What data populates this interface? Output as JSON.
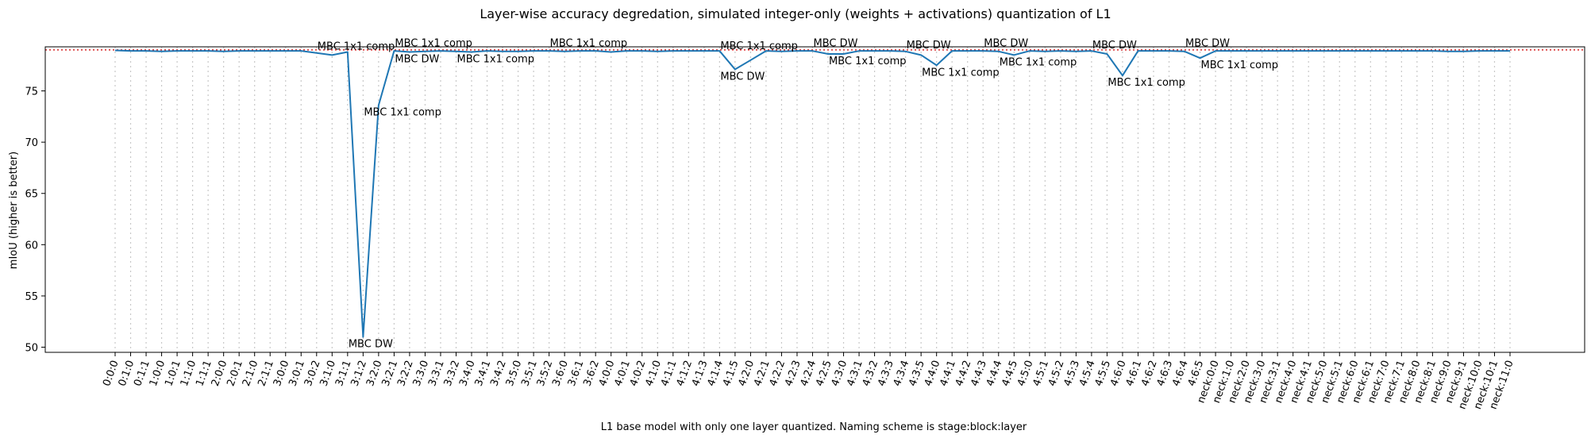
{
  "chart_data": {
    "type": "line",
    "title": "Layer-wise accuracy degredation, simulated integer-only (weights + activations) quantization of L1",
    "xlabel": "L1 base model with only one layer quantized. Naming scheme is stage:block:layer",
    "ylabel": "mIoU (higher is better)",
    "ylim": [
      49.5,
      79.3
    ],
    "yticks": [
      50,
      55,
      60,
      65,
      70,
      75
    ],
    "baseline": 79.0,
    "grid": "vertical dotted at each category",
    "colors": {
      "line": "#1f77b4",
      "baseline": "#d62728",
      "grid": "#c8c8c8"
    },
    "categories": [
      "0:0:0",
      "0:1:0",
      "0:1:1",
      "1:0:0",
      "1:0:1",
      "1:1:0",
      "1:1:1",
      "2:0:0",
      "2:0:1",
      "2:1:0",
      "2:1:1",
      "3:0:0",
      "3:0:1",
      "3:0:2",
      "3:1:0",
      "3:1:1",
      "3:1:2",
      "3:2:0",
      "3:2:1",
      "3:2:2",
      "3:3:0",
      "3:3:1",
      "3:3:2",
      "3:4:0",
      "3:4:1",
      "3:4:2",
      "3:5:0",
      "3:5:1",
      "3:5:2",
      "3:6:0",
      "3:6:1",
      "3:6:2",
      "4:0:0",
      "4:0:1",
      "4:0:2",
      "4:1:0",
      "4:1:1",
      "4:1:2",
      "4:1:3",
      "4:1:4",
      "4:1:5",
      "4:2:0",
      "4:2:1",
      "4:2:2",
      "4:2:3",
      "4:2:4",
      "4:2:5",
      "4:3:0",
      "4:3:1",
      "4:3:2",
      "4:3:3",
      "4:3:4",
      "4:3:5",
      "4:4:0",
      "4:4:1",
      "4:4:2",
      "4:4:3",
      "4:4:4",
      "4:4:5",
      "4:5:0",
      "4:5:1",
      "4:5:2",
      "4:5:3",
      "4:5:4",
      "4:5:5",
      "4:6:0",
      "4:6:1",
      "4:6:2",
      "4:6:3",
      "4:6:4",
      "4:6:5",
      "neck:0:0",
      "neck:1:0",
      "neck:2:0",
      "neck:3:0",
      "neck:3:1",
      "neck:4:0",
      "neck:4:1",
      "neck:5:0",
      "neck:5:1",
      "neck:6:0",
      "neck:6:1",
      "neck:7:0",
      "neck:7:1",
      "neck:8:0",
      "neck:8:1",
      "neck:9:0",
      "neck:9:1",
      "neck:10:0",
      "neck:10:1",
      "neck:11:0"
    ],
    "series": [
      {
        "values": [
          78.95,
          78.9,
          78.9,
          78.85,
          78.9,
          78.9,
          78.9,
          78.85,
          78.9,
          78.9,
          78.9,
          78.9,
          78.9,
          78.7,
          78.5,
          78.8,
          51.0,
          73.6,
          78.9,
          78.8,
          78.85,
          78.9,
          78.85,
          78.8,
          78.9,
          78.85,
          78.85,
          78.9,
          78.9,
          78.85,
          78.9,
          78.9,
          78.8,
          78.9,
          78.9,
          78.85,
          78.9,
          78.9,
          78.9,
          78.9,
          77.1,
          78.0,
          78.9,
          78.85,
          78.9,
          78.9,
          78.6,
          78.6,
          78.9,
          78.9,
          78.9,
          78.85,
          78.5,
          77.5,
          78.9,
          78.9,
          78.9,
          78.85,
          78.5,
          78.9,
          78.85,
          78.9,
          78.85,
          78.9,
          78.6,
          76.5,
          78.9,
          78.9,
          78.9,
          78.85,
          78.2,
          78.9,
          78.9,
          78.9,
          78.9,
          78.9,
          78.9,
          78.9,
          78.9,
          78.9,
          78.9,
          78.9,
          78.9,
          78.9,
          78.9,
          78.9,
          78.85,
          78.85,
          78.9,
          78.9,
          78.9
        ]
      }
    ],
    "annotations": [
      {
        "x": "3:0:2",
        "y": 78.8,
        "text": "MBC 1x1 comp",
        "pos": "above"
      },
      {
        "x": "3:1:1",
        "y": 51.0,
        "text": "MBC DW",
        "pos": "below"
      },
      {
        "x": "3:1:2",
        "y": 73.6,
        "text": "MBC 1x1 comp",
        "pos": "below"
      },
      {
        "x": "3:2:1",
        "y": 79.1,
        "text": "MBC 1x1 comp",
        "pos": "above"
      },
      {
        "x": "3:2:1",
        "y": 78.8,
        "text": "MBC DW",
        "pos": "below"
      },
      {
        "x": "3:3:2",
        "y": 78.8,
        "text": "MBC 1x1 comp",
        "pos": "below"
      },
      {
        "x": "3:5:2",
        "y": 79.1,
        "text": "MBC 1x1 comp",
        "pos": "above"
      },
      {
        "x": "4:1:4",
        "y": 77.1,
        "text": "MBC DW",
        "pos": "below"
      },
      {
        "x": "4:1:4",
        "y": 78.85,
        "text": "MBC 1x1 comp",
        "pos": "above"
      },
      {
        "x": "4:2:4",
        "y": 79.1,
        "text": "MBC DW",
        "pos": "above"
      },
      {
        "x": "4:2:5",
        "y": 78.6,
        "text": "MBC 1x1 comp",
        "pos": "below"
      },
      {
        "x": "4:3:4",
        "y": 78.9,
        "text": "MBC DW",
        "pos": "above"
      },
      {
        "x": "4:3:5",
        "y": 77.5,
        "text": "MBC 1x1 comp",
        "pos": "below"
      },
      {
        "x": "4:4:3",
        "y": 79.1,
        "text": "MBC DW",
        "pos": "above"
      },
      {
        "x": "4:4:4",
        "y": 78.5,
        "text": "MBC 1x1 comp",
        "pos": "below"
      },
      {
        "x": "4:5:4",
        "y": 78.9,
        "text": "MBC DW",
        "pos": "above"
      },
      {
        "x": "4:5:5",
        "y": 76.5,
        "text": "MBC 1x1 comp",
        "pos": "below"
      },
      {
        "x": "4:6:4",
        "y": 79.1,
        "text": "MBC DW",
        "pos": "above"
      },
      {
        "x": "4:6:5",
        "y": 78.2,
        "text": "MBC 1x1 comp",
        "pos": "below"
      }
    ]
  }
}
